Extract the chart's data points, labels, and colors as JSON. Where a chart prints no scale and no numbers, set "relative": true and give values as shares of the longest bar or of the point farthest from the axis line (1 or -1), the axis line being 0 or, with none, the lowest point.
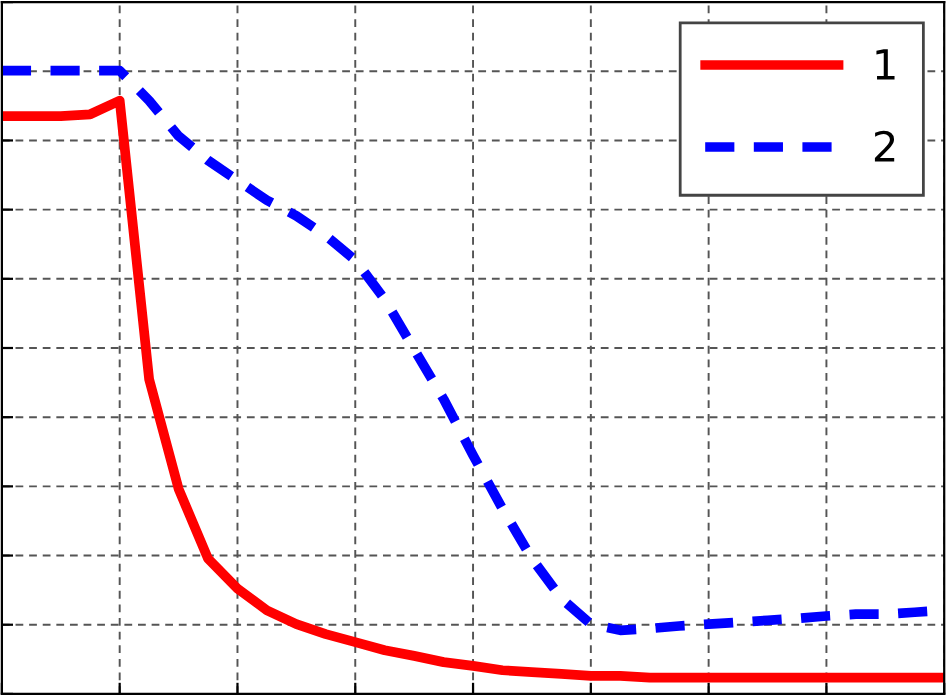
{
  "chart_data": {
    "type": "line",
    "relative": true,
    "grid": true,
    "legend": "top right",
    "categories": [
      null,
      null,
      null,
      null,
      null,
      null,
      null,
      null,
      null,
      null,
      null,
      null,
      null,
      null,
      null,
      null,
      null,
      null,
      null,
      null,
      null,
      null,
      null,
      null,
      null,
      null,
      null,
      null,
      null,
      null,
      null,
      null,
      null
    ],
    "series": [
      {
        "name": "1",
        "color": "#ff0000",
        "line_style": "solid",
        "values": [
          0.927,
          0.927,
          0.927,
          0.93,
          0.952,
          0.505,
          0.329,
          0.217,
          0.169,
          0.134,
          0.112,
          0.096,
          0.083,
          0.07,
          0.061,
          0.051,
          0.045,
          0.038,
          0.035,
          0.032,
          0.029,
          0.029,
          0.026,
          0.026,
          0.026,
          0.026,
          0.026,
          0.026,
          0.026,
          0.026,
          0.026,
          0.026,
          0.026
        ]
      },
      {
        "name": "2",
        "color": "#0000ff",
        "line_style": "dashed",
        "values": [
          1.0,
          1.0,
          1.0,
          1.0,
          1.0,
          0.952,
          0.895,
          0.856,
          0.824,
          0.792,
          0.767,
          0.735,
          0.696,
          0.633,
          0.553,
          0.473,
          0.383,
          0.297,
          0.217,
          0.153,
          0.112,
          0.102,
          0.105,
          0.109,
          0.112,
          0.115,
          0.118,
          0.121,
          0.125,
          0.128,
          0.128,
          0.131,
          0.134
        ]
      }
    ]
  }
}
